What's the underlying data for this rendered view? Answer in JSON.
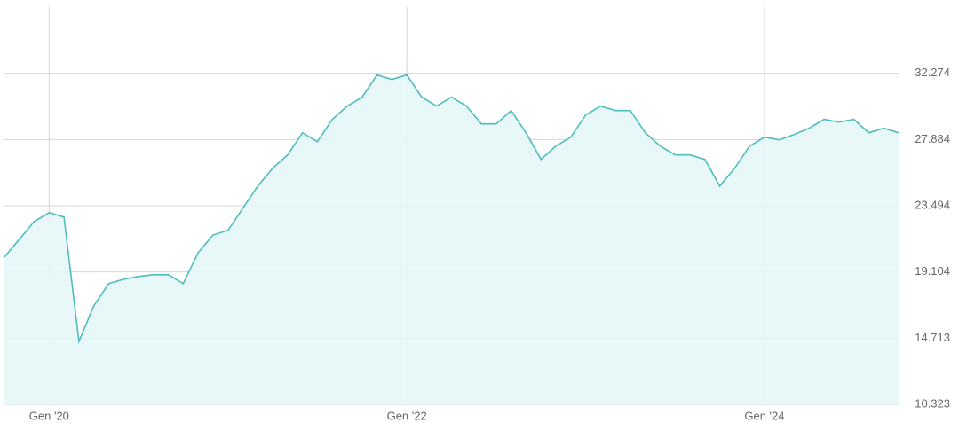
{
  "chart_data": {
    "type": "area",
    "x": [
      "2019-10",
      "2019-11",
      "2019-12",
      "2020-01",
      "2020-02",
      "2020-03",
      "2020-04",
      "2020-05",
      "2020-06",
      "2020-07",
      "2020-08",
      "2020-09",
      "2020-10",
      "2020-11",
      "2020-12",
      "2021-01",
      "2021-02",
      "2021-03",
      "2021-04",
      "2021-05",
      "2021-06",
      "2021-07",
      "2021-08",
      "2021-09",
      "2021-10",
      "2021-11",
      "2021-12",
      "2022-01",
      "2022-02",
      "2022-03",
      "2022-04",
      "2022-05",
      "2022-06",
      "2022-07",
      "2022-08",
      "2022-09",
      "2022-10",
      "2022-11",
      "2022-12",
      "2023-01",
      "2023-02",
      "2023-03",
      "2023-04",
      "2023-05",
      "2023-06",
      "2023-07",
      "2023-08",
      "2023-09",
      "2023-10",
      "2023-11",
      "2023-12",
      "2024-01",
      "2024-02",
      "2024-03",
      "2024-04",
      "2024-05",
      "2024-06",
      "2024-07",
      "2024-08",
      "2024-09",
      "2024-10"
    ],
    "values": [
      20.09,
      21.27,
      22.45,
      23.03,
      22.74,
      14.5,
      16.86,
      18.33,
      18.62,
      18.8,
      18.92,
      18.92,
      18.33,
      20.39,
      21.56,
      21.86,
      23.33,
      24.8,
      25.98,
      26.86,
      28.33,
      27.74,
      29.22,
      30.1,
      30.69,
      32.16,
      31.86,
      32.16,
      30.69,
      30.1,
      30.69,
      30.1,
      28.92,
      28.92,
      29.8,
      28.33,
      26.57,
      27.45,
      28.04,
      29.51,
      30.1,
      29.8,
      29.8,
      28.33,
      27.45,
      26.86,
      26.86,
      26.57,
      24.8,
      25.98,
      27.45,
      28.04,
      27.86,
      28.22,
      28.63,
      29.22,
      29.04,
      29.22,
      28.33,
      28.63,
      28.33
    ],
    "color": "#4dbdbd",
    "fill": "#e5f7f8",
    "xlim": [
      "2019-10",
      "2024-10"
    ],
    "xticks": [
      {
        "value": "2020-01",
        "label": "Gen '20"
      },
      {
        "value": "2022-01",
        "label": "Gen '22"
      },
      {
        "value": "2024-01",
        "label": "Gen '24"
      }
    ],
    "ylim": [
      10.323,
      36.664
    ],
    "yticks": [
      10.323,
      14.713,
      19.104,
      23.494,
      27.884,
      32.274
    ],
    "grid": true
  }
}
